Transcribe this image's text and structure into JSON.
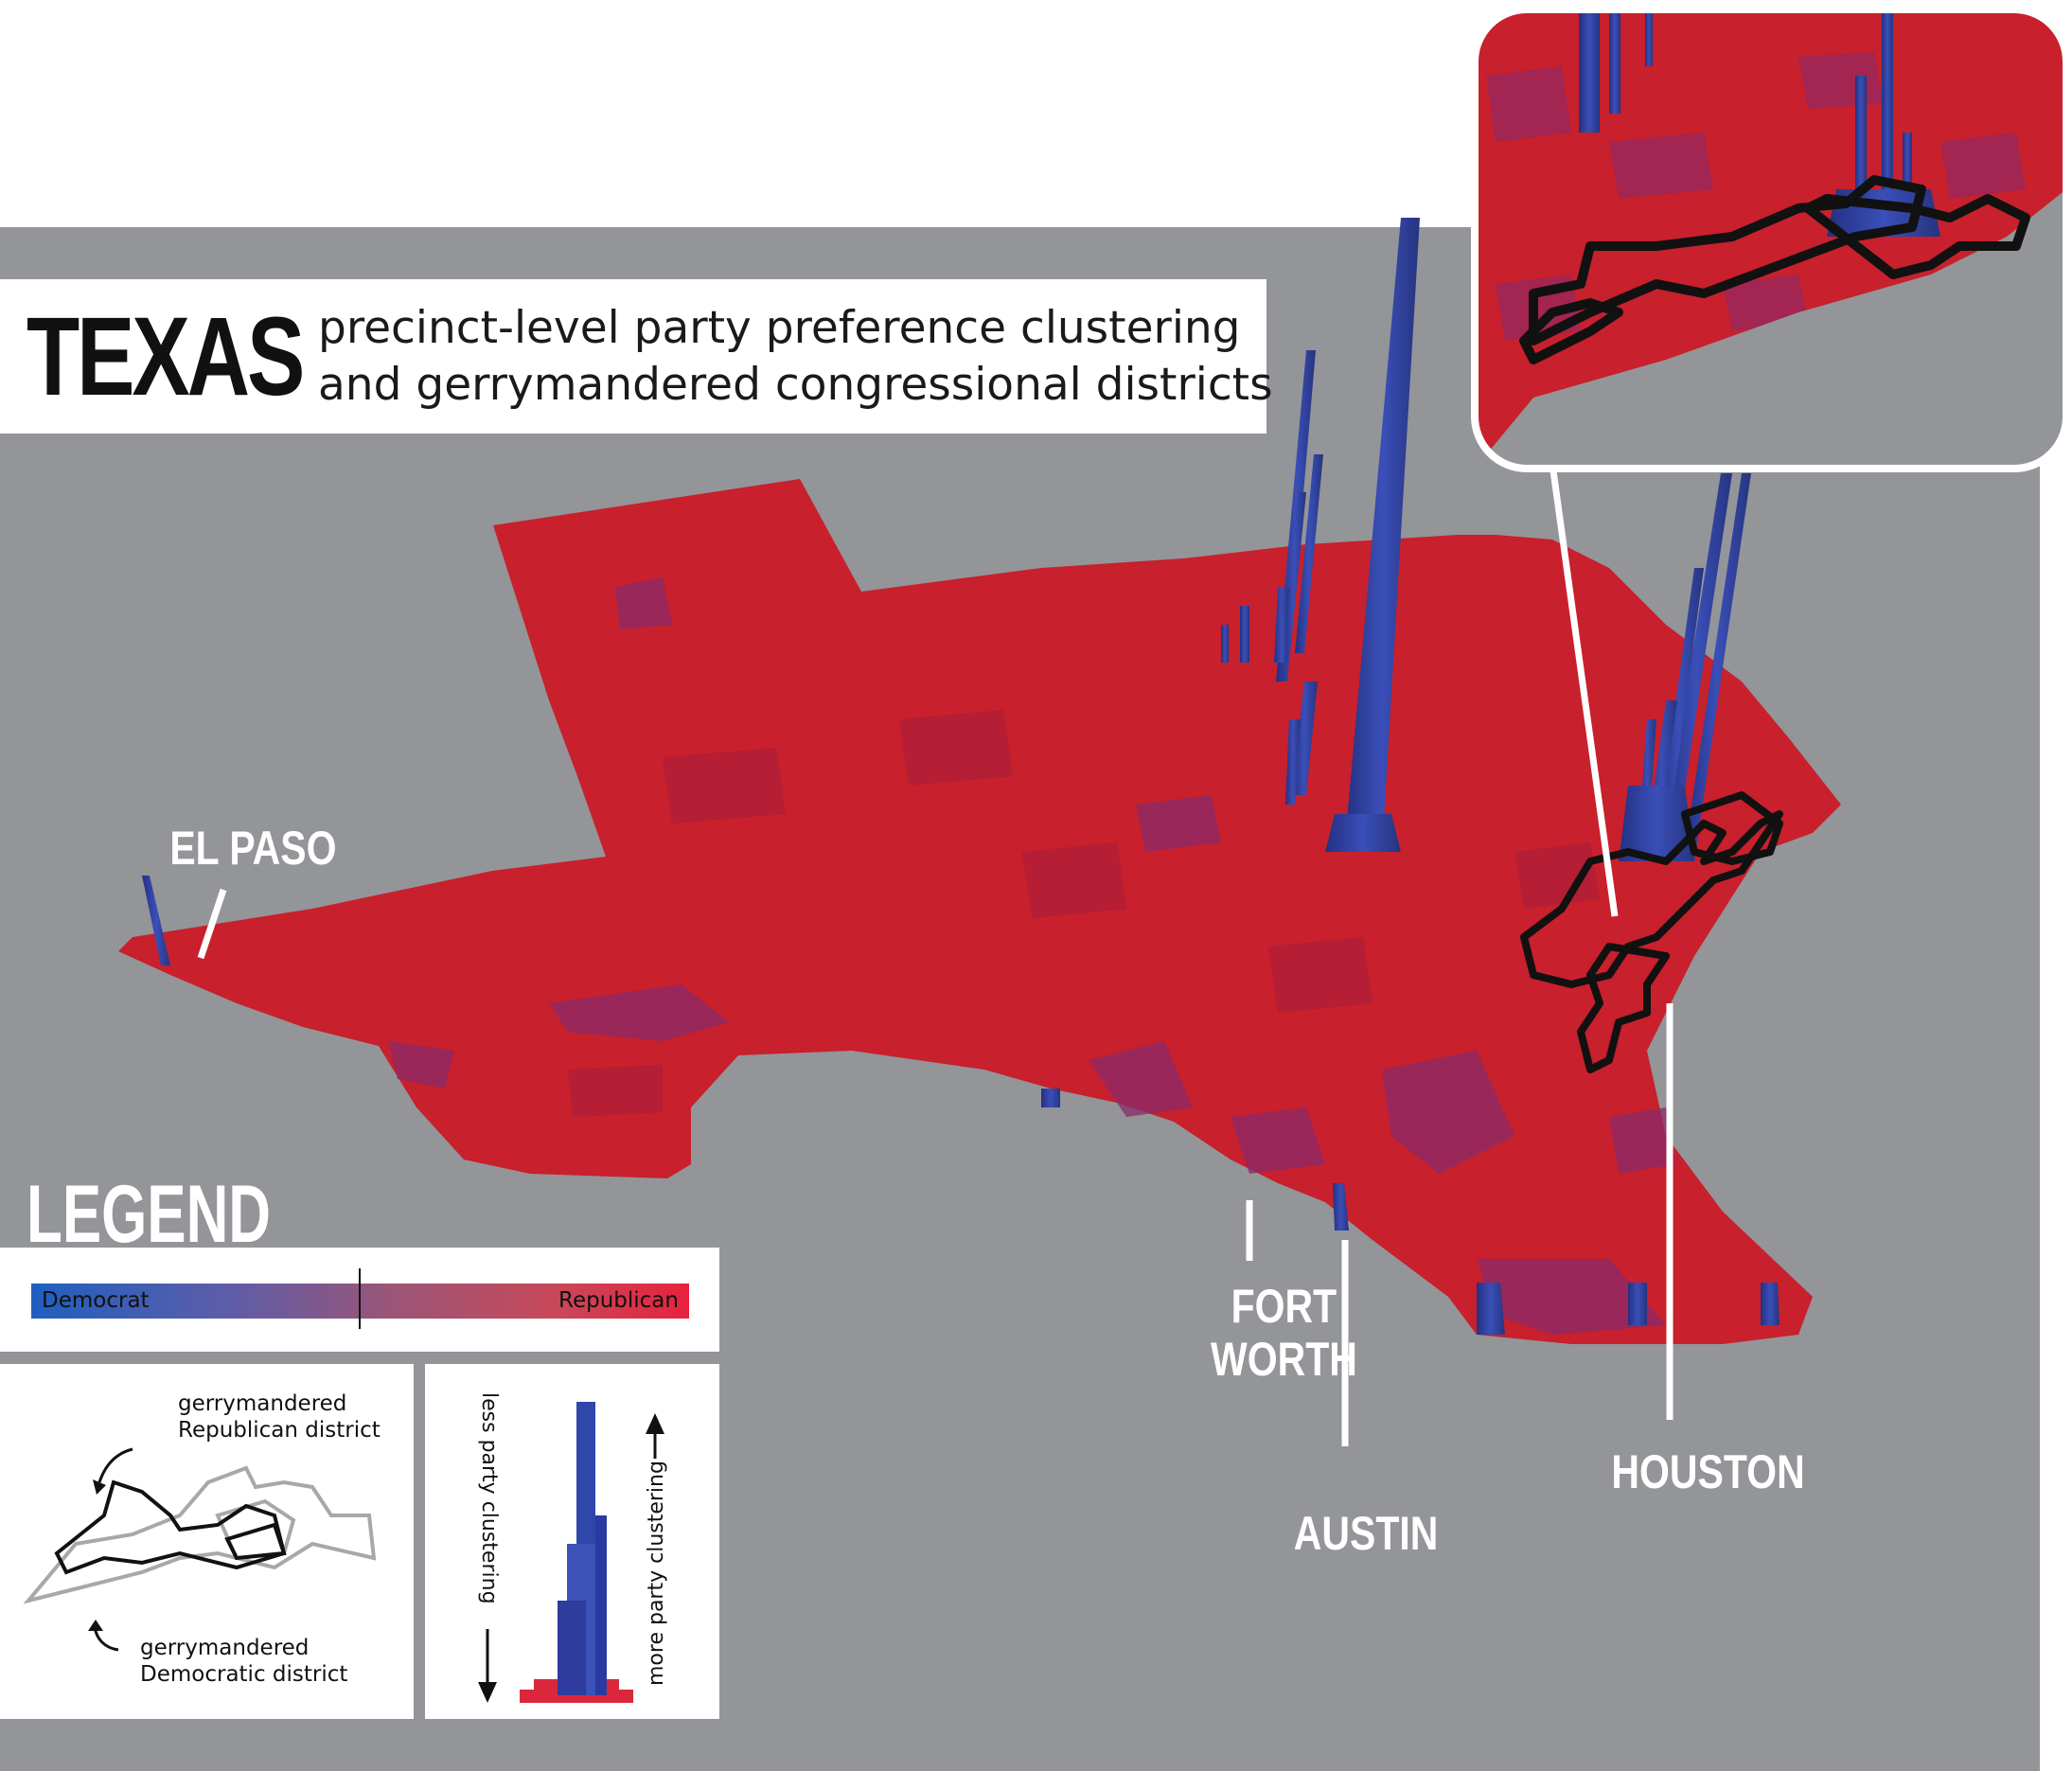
{
  "title": {
    "main": "TEXAS",
    "subtitle_line1": "precinct-level party preference clustering",
    "subtitle_line2": "and gerrymandered congressional districts"
  },
  "cities": {
    "el_paso": "EL PASO",
    "fort_worth_1": "FORT",
    "fort_worth_2": "WORTH",
    "austin": "AUSTIN",
    "houston": "HOUSTON"
  },
  "legend": {
    "title": "LEGEND",
    "democrat": "Democrat",
    "republican": "Republican",
    "gop_district_1": "gerrymandered",
    "gop_district_2": "Republican district",
    "dem_district_1": "gerrymandered",
    "dem_district_2": "Democratic district",
    "less_clustering": "less  party clustering",
    "more_clustering": "more party clustering"
  },
  "colors": {
    "background": "#939598",
    "republican": "#c8202c",
    "democrat": "#2e3c9e",
    "mixed": "#8a2a6a"
  }
}
